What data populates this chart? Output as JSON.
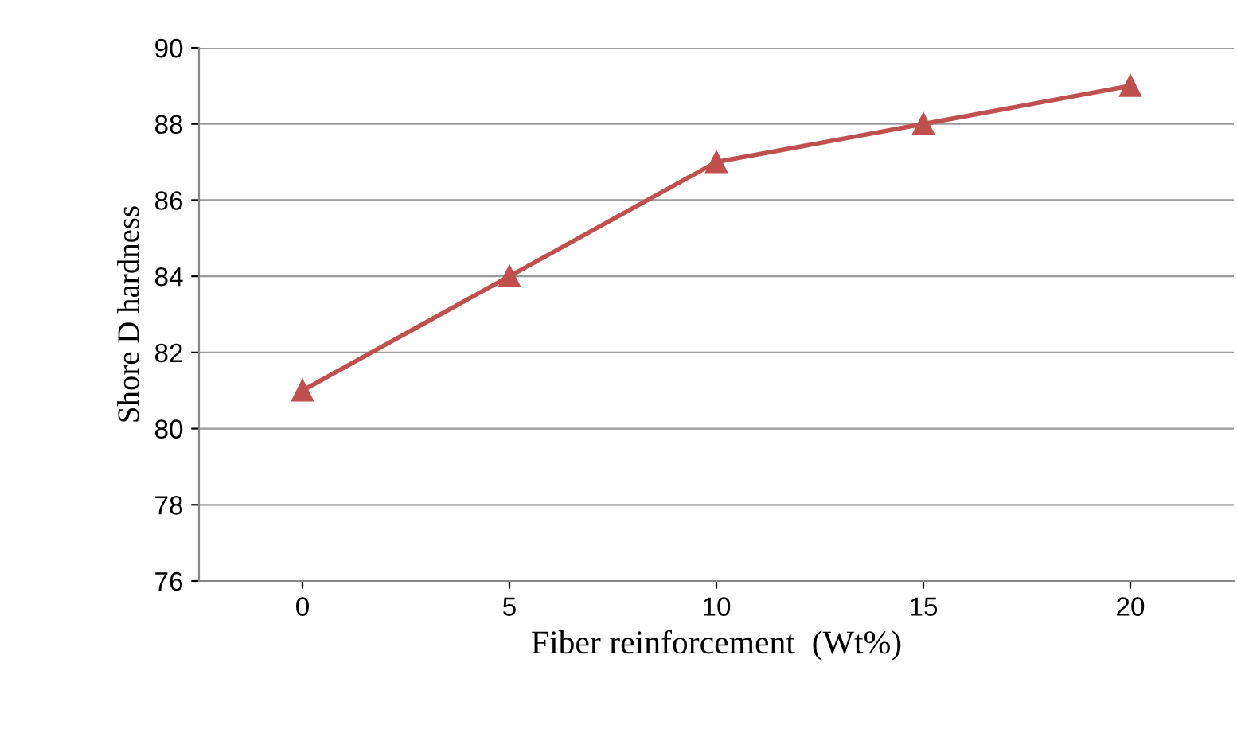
{
  "chart_data": {
    "type": "line",
    "xlabel": "Fiber reinforcement  (Wt%)",
    "ylabel": "Shore D hardness",
    "categories": [
      "0",
      "5",
      "10",
      "15",
      "20"
    ],
    "series": [
      {
        "color": "#c0504d",
        "values": [
          81,
          84,
          87,
          88,
          89
        ]
      }
    ],
    "ylim": [
      76,
      90
    ],
    "yticks": [
      76,
      78,
      80,
      82,
      84,
      86,
      88,
      90
    ],
    "grid": "y",
    "marker": "triangle",
    "line_style": "solid"
  }
}
